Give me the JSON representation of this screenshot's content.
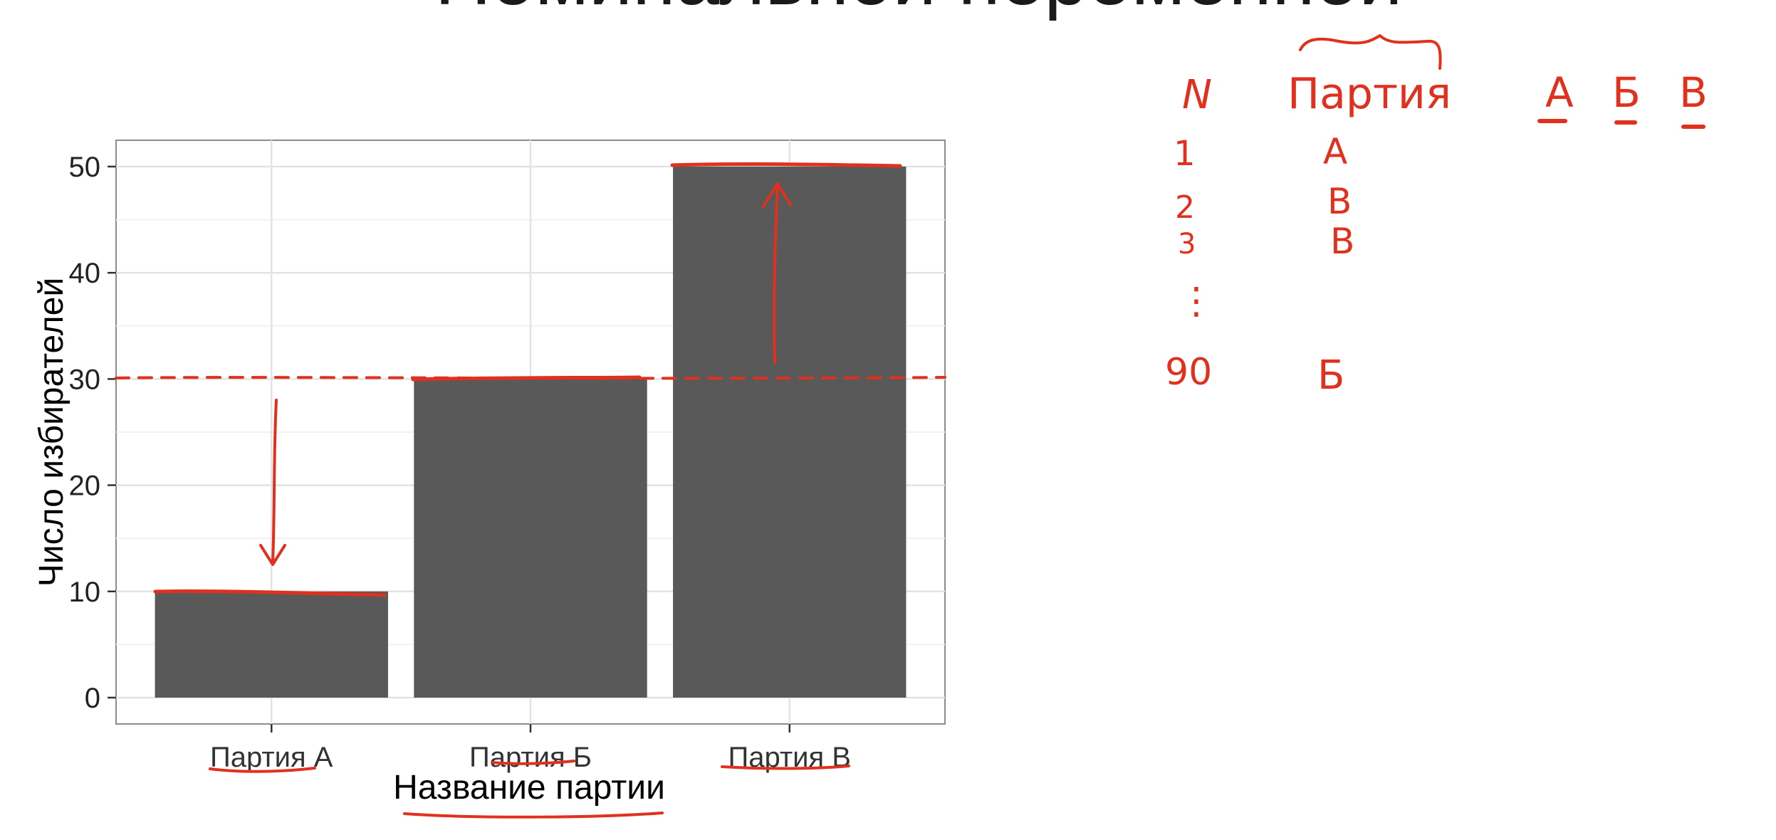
{
  "slide": {
    "title": "Номинальной переменной"
  },
  "chart_data": {
    "type": "bar",
    "categories": [
      "Партия А",
      "Партия Б",
      "Партия В"
    ],
    "values": [
      10,
      30,
      50
    ],
    "xlabel": "Название партии",
    "ylabel": "Число избирателей",
    "ylim": [
      0,
      52.5
    ],
    "yticks": [
      0,
      10,
      20,
      30,
      40,
      50
    ],
    "grid": true,
    "bar_color": "#595959",
    "reference_line": 30
  },
  "handwriting": {
    "header_n": "N",
    "header_party": "Партия",
    "categories": [
      "А",
      "Б",
      "В"
    ],
    "rows": [
      {
        "n": "1",
        "party": "А"
      },
      {
        "n": "2",
        "party": "В"
      },
      {
        "n": "3",
        "party": "В"
      },
      {
        "n": "⋮",
        "party": ""
      },
      {
        "n": "90",
        "party": "Б"
      }
    ],
    "ink_color": "#e0301e"
  }
}
